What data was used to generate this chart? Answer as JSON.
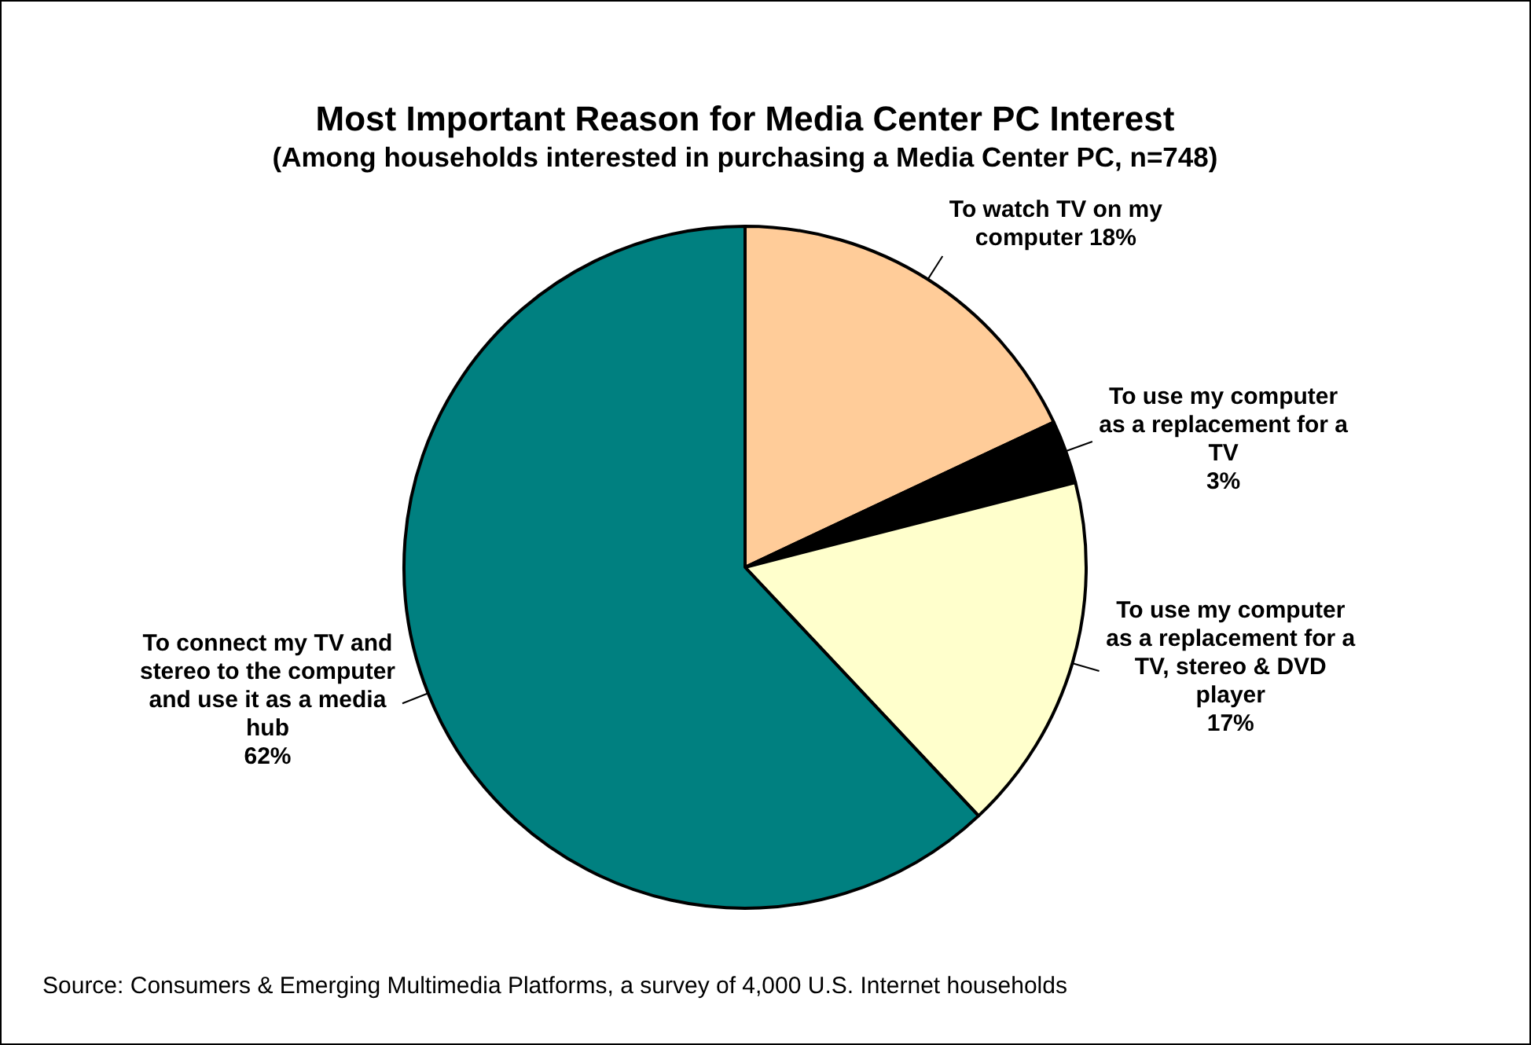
{
  "chart_data": {
    "type": "pie",
    "title": "Most Important Reason for Media Center PC Interest",
    "subtitle": "(Among households interested in purchasing a Media Center PC, n=748)",
    "categories": [
      "To watch TV on my computer",
      "To use my computer as a replacement for a TV",
      "To use my computer as a replacement for a TV, stereo & DVD player",
      "To connect my TV and stereo to the computer and use it as a media hub"
    ],
    "values": [
      18,
      3,
      17,
      62
    ],
    "value_labels": [
      "18%",
      "3%",
      "17%",
      "62%"
    ],
    "colors": [
      "#ffcc99",
      "#000000",
      "#ffffcc",
      "#008080"
    ],
    "legend": false,
    "annotations": [
      "Source: Consumers & Emerging Multimedia Platforms, a survey of 4,000 U.S. Internet households"
    ]
  }
}
